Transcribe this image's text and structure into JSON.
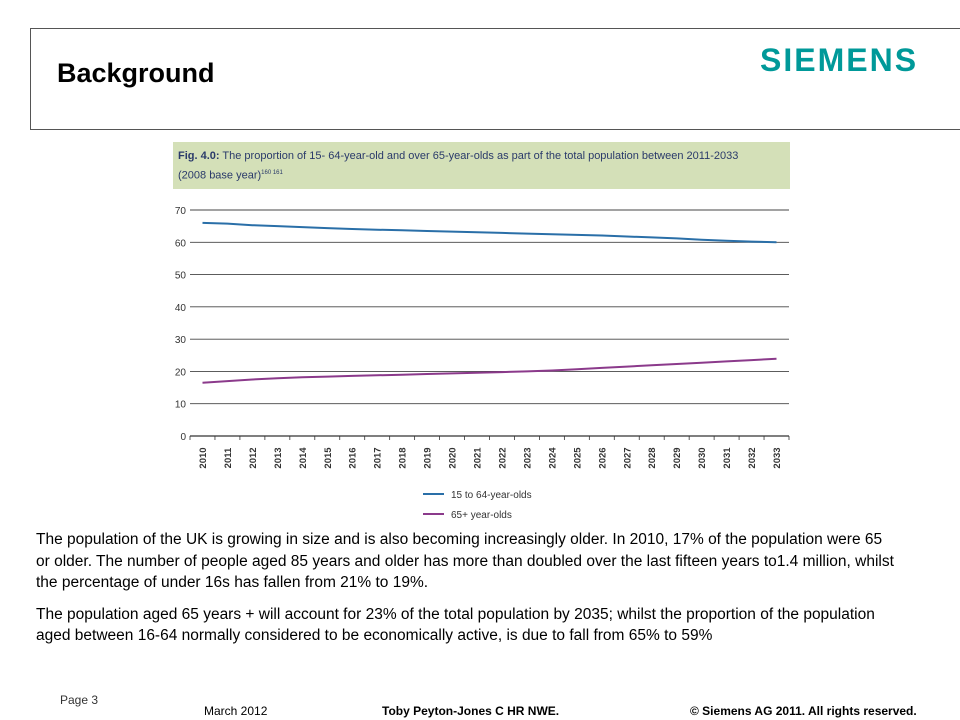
{
  "header": {
    "title": "Background",
    "logo": "SIEMENS"
  },
  "figure": {
    "fig_label": "Fig. 4.0:",
    "caption": "The proportion of 15- 64-year-old and over 65-year-olds as part of the total population between 2011-2033",
    "caption_line2": "(2008 base year)",
    "caption_sup": "160 161"
  },
  "chart_data": {
    "type": "line",
    "x": [
      "2010",
      "2011",
      "2012",
      "2013",
      "2014",
      "2015",
      "2016",
      "2017",
      "2018",
      "2019",
      "2020",
      "2021",
      "2022",
      "2023",
      "2024",
      "2025",
      "2026",
      "2027",
      "2028",
      "2029",
      "2030",
      "2031",
      "2032",
      "2033"
    ],
    "ylim": [
      0,
      70
    ],
    "yticks": [
      "0",
      "10",
      "20",
      "30",
      "40",
      "50",
      "60",
      "70"
    ],
    "grid": true,
    "legend_position": "bottom",
    "series": [
      {
        "name": "15 to 64-year-olds",
        "color": "#2a6fa8",
        "values": [
          66,
          65.8,
          65.3,
          65,
          64.7,
          64.4,
          64.1,
          63.9,
          63.7,
          63.5,
          63.3,
          63.1,
          62.9,
          62.7,
          62.5,
          62.3,
          62.1,
          61.8,
          61.5,
          61.2,
          60.8,
          60.5,
          60.2,
          60
        ]
      },
      {
        "name": "65+ year-olds",
        "color": "#8b3a8b",
        "values": [
          16.5,
          17,
          17.5,
          17.9,
          18.2,
          18.4,
          18.6,
          18.8,
          19,
          19.2,
          19.4,
          19.6,
          19.8,
          20,
          20.3,
          20.7,
          21.1,
          21.5,
          21.9,
          22.3,
          22.7,
          23.1,
          23.5,
          23.9
        ]
      }
    ]
  },
  "body": {
    "p1": "The population of the UK is growing in size and is also becoming increasingly older. In 2010, 17% of the population were 65 or older. The number of people aged 85 years and older has more than doubled over the last fifteen years to1.4 million, whilst the percentage of under 16s has fallen from 21% to 19%.",
    "p2": "The population aged 65 years + will account for 23% of the total population by 2035; whilst the proportion of the population aged between 16-64 normally considered to be economically active, is due to fall from 65% to 59%"
  },
  "footer": {
    "page": "Page 3",
    "date": "March 2012",
    "author": "Toby Peyton-Jones  C HR NWE.",
    "copyright": "© Siemens AG 2011. All rights reserved."
  }
}
